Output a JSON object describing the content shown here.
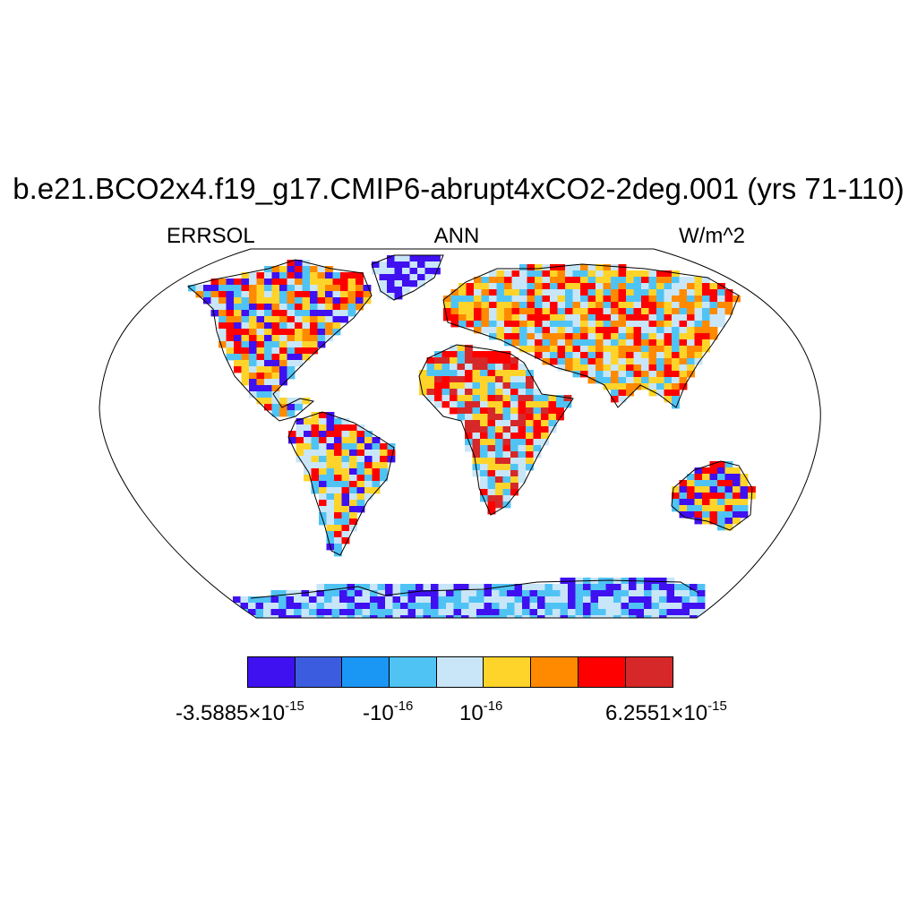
{
  "title": "b.e21.BCO2x4.f19_g17.CMIP6-abrupt4xCO2-2deg.001 (yrs 71-110)",
  "subtitle_left": "ERRSOL",
  "subtitle_center": "ANN",
  "subtitle_right": "W/m^2",
  "legend": {
    "colors": [
      "#3f10f0",
      "#3c5ce0",
      "#1a96f5",
      "#50c3f5",
      "#c8e6f8",
      "#ffd42a",
      "#ff8a00",
      "#ff0000",
      "#d62828"
    ],
    "labels": [
      {
        "mant": "-3.5885",
        "times": "×",
        "base": "10",
        "exp": "-15"
      },
      {
        "mant": "-",
        "times": "",
        "base": "10",
        "exp": "-16"
      },
      {
        "mant": "",
        "times": "",
        "base": "10",
        "exp": "-16"
      },
      {
        "mant": "6.2551",
        "times": "×",
        "base": "10",
        "exp": "-15"
      }
    ]
  },
  "map": {
    "projection": "Robinson",
    "region_colors": {
      "north_america": [
        "#50c3f5",
        "#c8e6f8",
        "#ffd42a",
        "#3f10f0",
        "#ff0000",
        "#ff8a00"
      ],
      "south_america": [
        "#50c3f5",
        "#ffd42a",
        "#ff0000",
        "#3f10f0",
        "#c8e6f8"
      ],
      "africa": [
        "#50c3f5",
        "#c8e6f8",
        "#ff0000",
        "#ffd42a",
        "#d62828"
      ],
      "eurasia": [
        "#50c3f5",
        "#c8e6f8",
        "#ffd42a",
        "#ff0000",
        "#ff8a00"
      ],
      "australia": [
        "#ff0000",
        "#3f10f0",
        "#50c3f5",
        "#ffd42a"
      ],
      "antarctica": [
        "#50c3f5",
        "#c8e6f8",
        "#3f10f0"
      ],
      "greenland": [
        "#3f10f0",
        "#c8e6f8"
      ]
    }
  }
}
